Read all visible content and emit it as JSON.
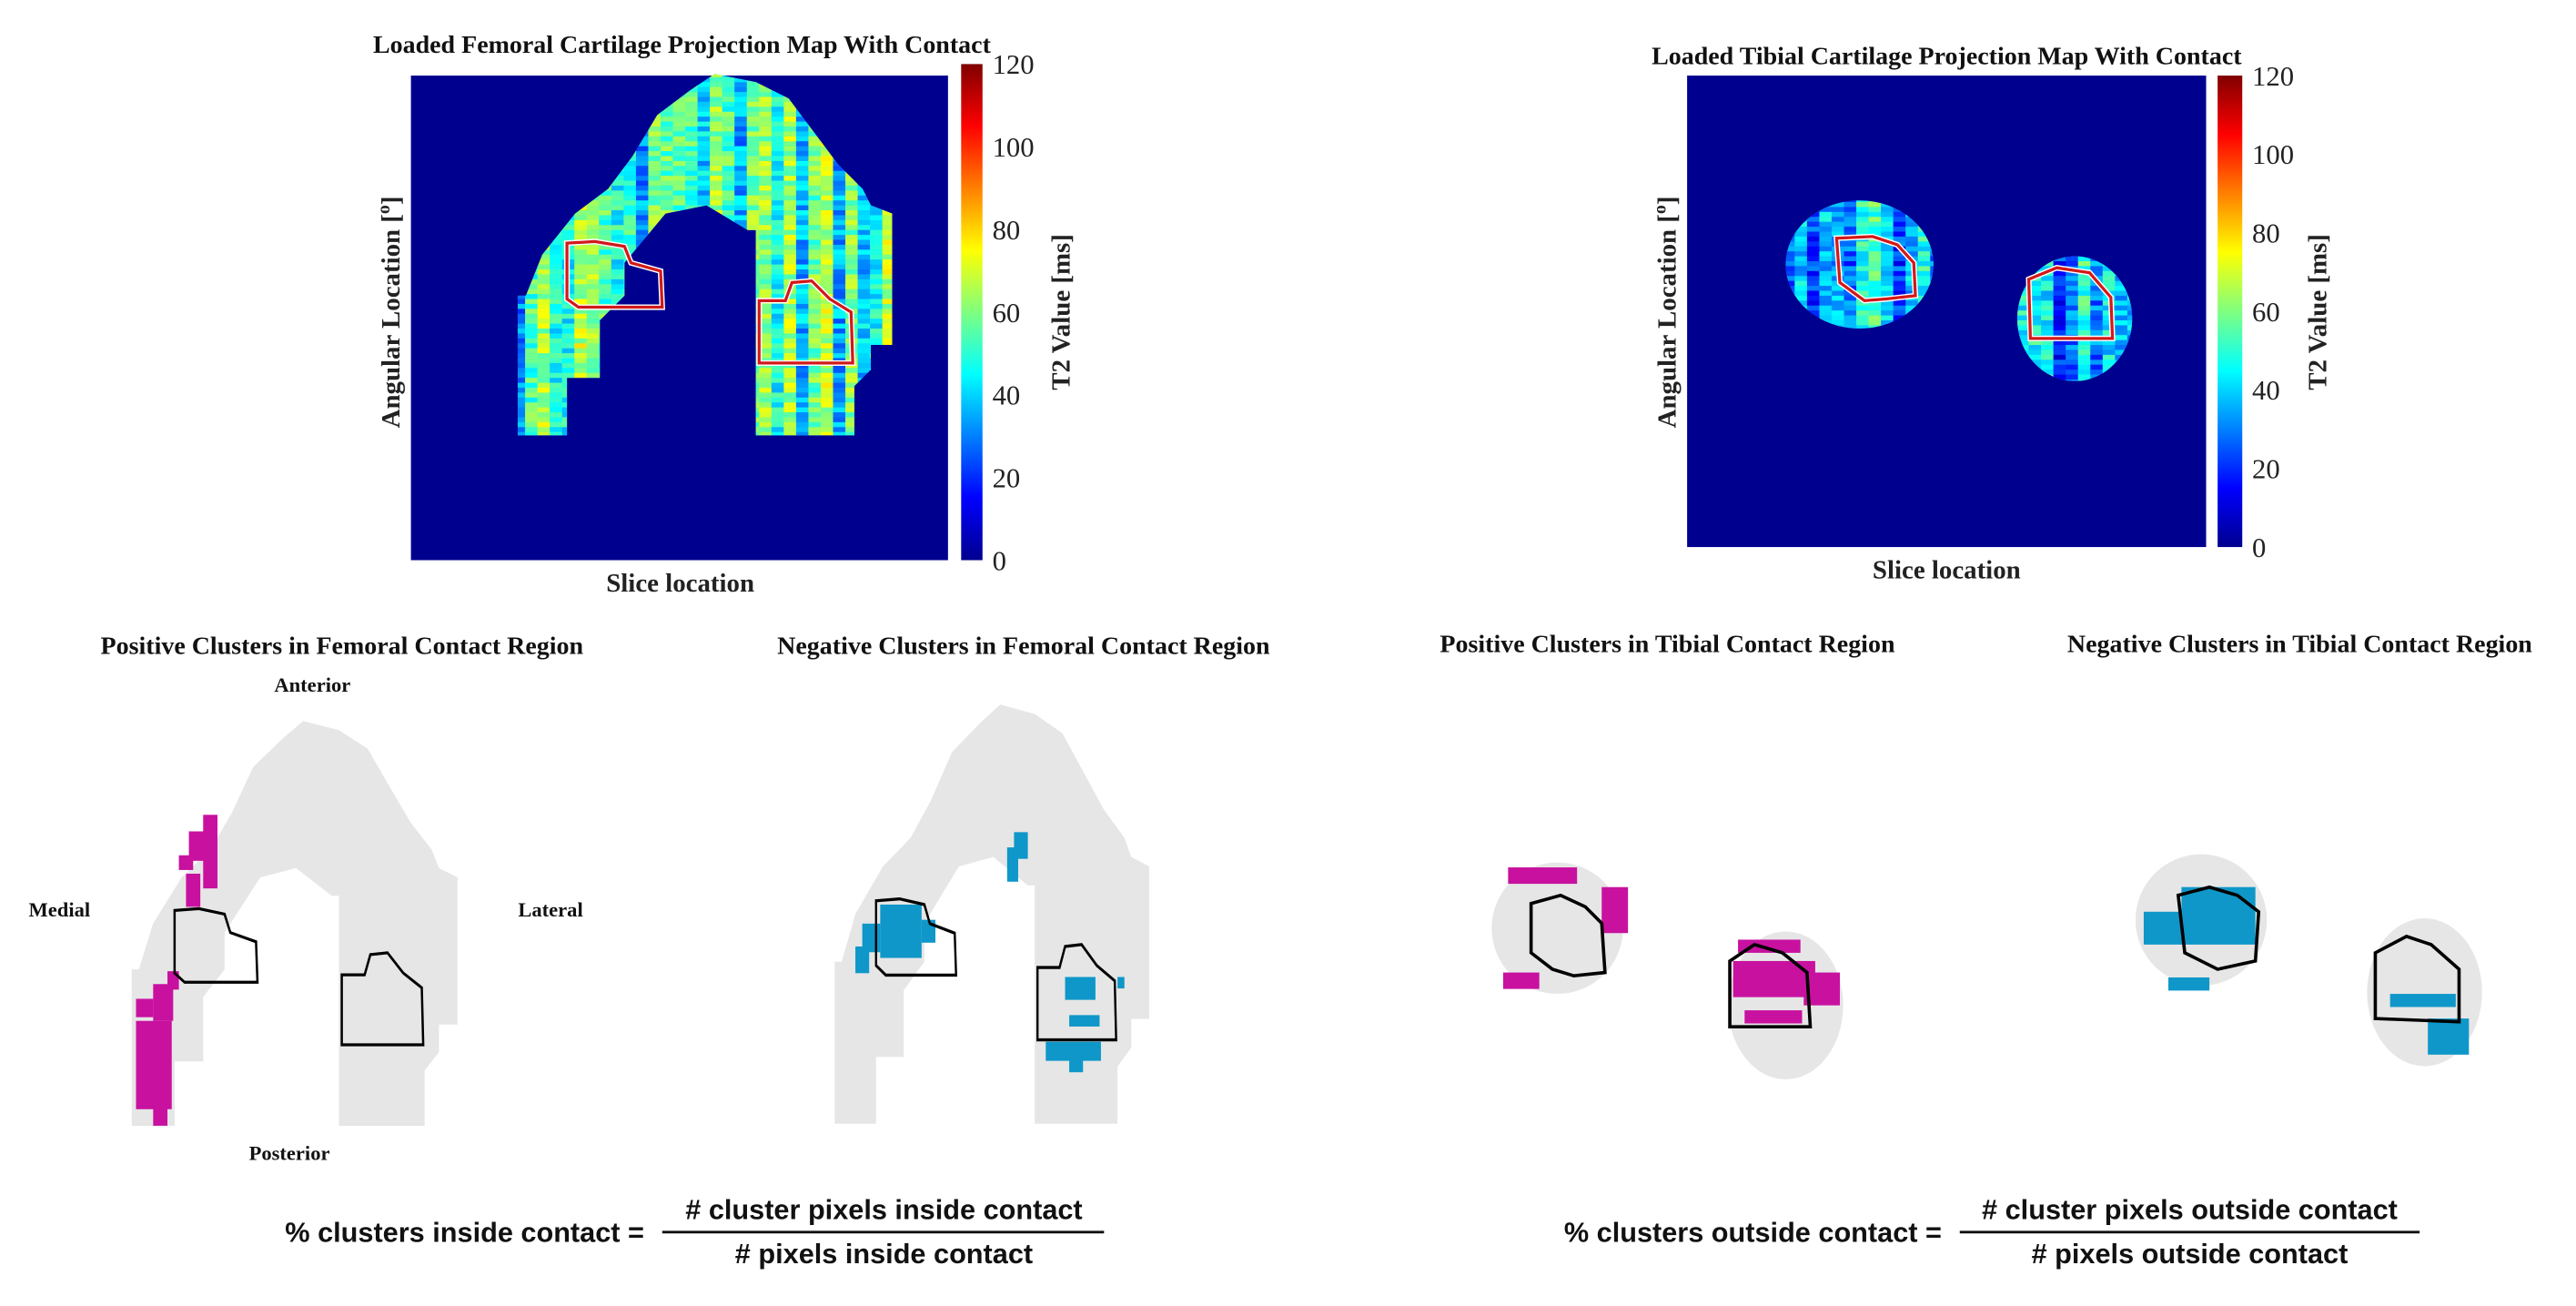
{
  "colors": {
    "background_map": "#00008f",
    "cartilage_gray": "#e6e6e6",
    "positive_cluster": "#c8119f",
    "negative_cluster": "#0f97c9",
    "contact_map": "#d11a1a",
    "contact_cluster": "#000000"
  },
  "chart_data": [
    {
      "type": "heatmap",
      "title": "Loaded Femoral Cartilage Projection Map With Contact",
      "xlabel": "Slice location",
      "ylabel": "Angular Location [°]",
      "ylabel_base": "Angular Location [",
      "ylabel_sup": "o",
      "ylabel_end": "]",
      "colorbar": {
        "label": "T2 Value [ms]",
        "range": [
          0,
          120
        ],
        "ticks": [
          "0",
          "20",
          "40",
          "60",
          "80",
          "100",
          "120"
        ],
        "colormap": "jet"
      },
      "typical_values_ms": [
        30,
        70
      ],
      "overlay": "contact region outline (red)"
    },
    {
      "type": "heatmap",
      "title": "Loaded Tibial Cartilage Projection Map With Contact",
      "xlabel": "Slice location",
      "ylabel": "Angular Location [°]",
      "ylabel_base": "Angular Location [",
      "ylabel_sup": "o",
      "ylabel_end": "]",
      "colorbar": {
        "label": "T2 Value [ms]",
        "range": [
          0,
          120
        ],
        "ticks": [
          "0",
          "20",
          "40",
          "60",
          "80",
          "100",
          "120"
        ],
        "colormap": "jet"
      },
      "typical_values_ms": [
        20,
        55
      ],
      "overlay": "contact region outline (red)"
    }
  ],
  "panels": {
    "fem_pos_title": "Positive Clusters in Femoral Contact Region",
    "fem_neg_title": "Negative Clusters in Femoral Contact Region",
    "tib_pos_title": "Positive Clusters in Tibial Contact Region",
    "tib_neg_title": "Negative Clusters in Tibial Contact Region",
    "anterior": "Anterior",
    "posterior": "Posterior",
    "medial": "Medial",
    "lateral": "Lateral"
  },
  "equations": {
    "inside": {
      "lhs": "% clusters inside contact =",
      "numerator": "# cluster pixels inside contact",
      "denominator": "# pixels inside contact"
    },
    "outside": {
      "lhs": "% clusters outside contact =",
      "numerator": "# cluster pixels outside contact",
      "denominator": "# pixels outside contact"
    }
  }
}
